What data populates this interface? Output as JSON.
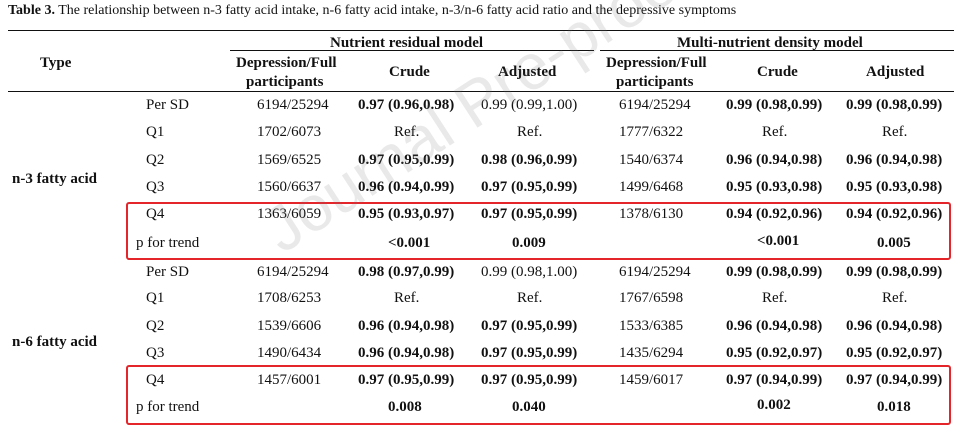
{
  "caption": {
    "label": "Table 3.",
    "text": " The relationship between n-3 fatty acid intake, n-6 fatty acid intake, n-3/n-6 fatty acid ratio and the depressive symptoms"
  },
  "watermark": "Journal Pre-proof",
  "headers": {
    "type": "Type",
    "group1": "Nutrient residual model",
    "group2": "Multi-nutrient density model",
    "dep1_line1": "Depression/Full",
    "dep1_line2": "participants",
    "crude1": "Crude",
    "adjusted1": "Adjusted",
    "dep2_line1": "Depression/Full",
    "dep2_line2": "participants",
    "crude2": "Crude",
    "adjusted2": "Adjusted"
  },
  "sections": [
    {
      "name": "n-3 fatty acid",
      "rows": [
        {
          "label": "Per SD",
          "dep1": "6194/25294",
          "crude1": "0.97 (0.96,0.98)",
          "adj1": "0.99 (0.99,1.00)",
          "dep2": "6194/25294",
          "crude2": "0.99 (0.98,0.99)",
          "adj2": "0.99 (0.98,0.99)"
        },
        {
          "label": "Q1",
          "dep1": "1702/6073",
          "crude1": "Ref.",
          "adj1": "Ref.",
          "dep2": "1777/6322",
          "crude2": "Ref.",
          "adj2": "Ref."
        },
        {
          "label": "Q2",
          "dep1": "1569/6525",
          "crude1": "0.97 (0.95,0.99)",
          "adj1": "0.98 (0.96,0.99)",
          "dep2": "1540/6374",
          "crude2": "0.96 (0.94,0.98)",
          "adj2": "0.96 (0.94,0.98)"
        },
        {
          "label": "Q3",
          "dep1": "1560/6637",
          "crude1": "0.96 (0.94,0.99)",
          "adj1": "0.97 (0.95,0.99)",
          "dep2": "1499/6468",
          "crude2": "0.95 (0.93,0.98)",
          "adj2": "0.95 (0.93,0.98)"
        },
        {
          "label": "Q4",
          "dep1": "1363/6059",
          "crude1": "0.95 (0.93,0.97)",
          "adj1": "0.97 (0.95,0.99)",
          "dep2": "1378/6130",
          "crude2": "0.94 (0.92,0.96)",
          "adj2": "0.94 (0.92,0.96)"
        },
        {
          "label": "p for trend",
          "dep1": "",
          "crude1": "<0.001",
          "adj1": "0.009",
          "dep2": "",
          "crude2": "<0.001",
          "adj2": "0.005"
        }
      ]
    },
    {
      "name": "n-6 fatty acid",
      "rows": [
        {
          "label": "Per SD",
          "dep1": "6194/25294",
          "crude1": "0.98 (0.97,0.99)",
          "adj1": "0.99 (0.98,1.00)",
          "dep2": "6194/25294",
          "crude2": "0.99 (0.98,0.99)",
          "adj2": "0.99 (0.98,0.99)"
        },
        {
          "label": "Q1",
          "dep1": "1708/6253",
          "crude1": "Ref.",
          "adj1": "Ref.",
          "dep2": "1767/6598",
          "crude2": "Ref.",
          "adj2": "Ref."
        },
        {
          "label": "Q2",
          "dep1": "1539/6606",
          "crude1": "0.96 (0.94,0.98)",
          "adj1": "0.97 (0.95,0.99)",
          "dep2": "1533/6385",
          "crude2": "0.96 (0.94,0.98)",
          "adj2": "0.96 (0.94,0.98)"
        },
        {
          "label": "Q3",
          "dep1": "1490/6434",
          "crude1": "0.96 (0.94,0.98)",
          "adj1": "0.97 (0.95,0.99)",
          "dep2": "1435/6294",
          "crude2": "0.95 (0.92,0.97)",
          "adj2": "0.95 (0.92,0.97)"
        },
        {
          "label": "Q4",
          "dep1": "1457/6001",
          "crude1": "0.97 (0.95,0.99)",
          "adj1": "0.97 (0.95,0.99)",
          "dep2": "1459/6017",
          "crude2": "0.97 (0.94,0.99)",
          "adj2": "0.97 (0.94,0.99)"
        },
        {
          "label": "p for trend",
          "dep1": "",
          "crude1": "0.008",
          "adj1": "0.040",
          "dep2": "",
          "crude2": "0.002",
          "adj2": "0.018"
        }
      ]
    }
  ],
  "highlight_color": "#e4262b"
}
